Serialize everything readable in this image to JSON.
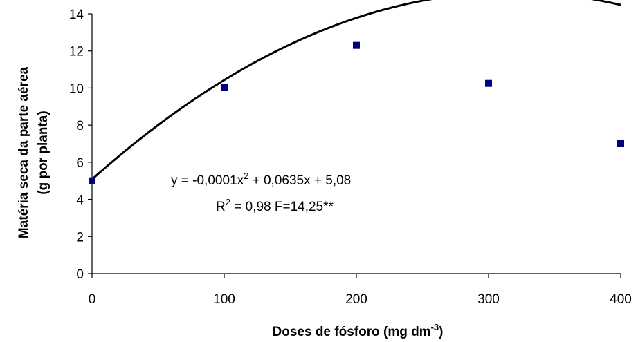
{
  "chart_data": {
    "type": "scatter",
    "xlabel": "Doses de fósforo (mg dm",
    "xlabel_sup": "-3",
    "xlabel_end": ")",
    "ylabel_line1": "Matéria seca da parte aérea",
    "ylabel_line2": "(g por planta)",
    "xlim": [
      0,
      400
    ],
    "ylim": [
      0,
      14
    ],
    "x_ticks": [
      0,
      100,
      200,
      300,
      400
    ],
    "x_tick_labels": [
      "0",
      "100",
      "200",
      "300",
      "400"
    ],
    "y_ticks": [
      0,
      2,
      4,
      6,
      8,
      10,
      12,
      14
    ],
    "y_tick_labels": [
      "0",
      "2",
      "4",
      "6",
      "8",
      "10",
      "12",
      "14"
    ],
    "grid": false,
    "series": [
      {
        "marker": "square",
        "color": "#000080",
        "x": [
          0,
          100,
          200,
          300,
          400
        ],
        "y": [
          5.0,
          10.05,
          12.3,
          10.25,
          7.0
        ]
      }
    ],
    "fit": {
      "type": "quadratic",
      "a": -0.0001,
      "b": 0.0635,
      "c": 5.08,
      "color": "#000000"
    },
    "annotations": {
      "eq_part1": "y = -0,0001x",
      "eq_sup": "2",
      "eq_part2": " + 0,0635x + 5,08",
      "r_part1": "R",
      "r_sup": "2",
      "r_part2": " = 0,98 F=14,25**"
    }
  }
}
